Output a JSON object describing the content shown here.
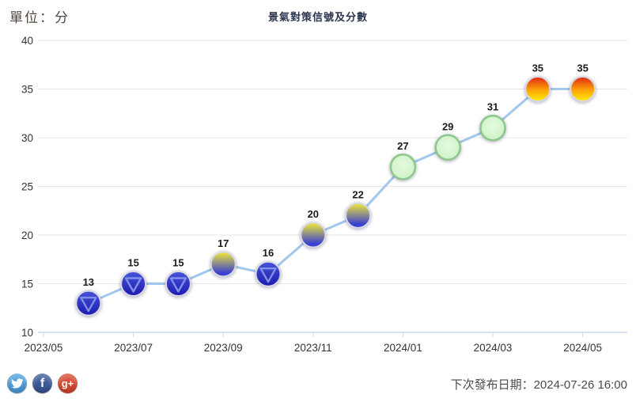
{
  "header": {
    "unit_label": "單位：分",
    "title": "景氣對策信號及分數"
  },
  "chart_data": {
    "type": "line",
    "title": "景氣對策信號及分數",
    "ylabel": "單位：分",
    "ylim": [
      10,
      40
    ],
    "ytick_interval": 5,
    "yticks": [
      10,
      15,
      20,
      25,
      30,
      35,
      40
    ],
    "x_tick_labels": [
      "2023/05",
      "2023/07",
      "2023/09",
      "2023/11",
      "2024/01",
      "2024/03",
      "2024/05"
    ],
    "grid_on": true,
    "legend": "none",
    "line_color": "#a2c7ec",
    "grid_color": "#e6e6e6",
    "axis_color": "#ccd6eb",
    "label_color": "#333333",
    "data_label_color": "#1a1a1a",
    "signal_colors": {
      "blue": {
        "top": "#4753da",
        "bottom": "#1b1bae",
        "triangle_stroke": "#7f90e6",
        "ring": "#d9d9e6"
      },
      "yellow_blue": {
        "top": "#e8e13e",
        "bottom": "#3a41d0",
        "ring": "#d9d9e6"
      },
      "green": {
        "center": "#e4fbde",
        "edge": "#cdf0c6",
        "ring": "#8cc88c"
      },
      "yellow_red": {
        "top": "#e33113",
        "mid": "#fb9b07",
        "bottom": "#ffe70a",
        "ring": "#d9d9e6"
      }
    },
    "points": [
      {
        "month": "2023/06",
        "value": 13,
        "signal": "blue"
      },
      {
        "month": "2023/07",
        "value": 15,
        "signal": "blue"
      },
      {
        "month": "2023/08",
        "value": 15,
        "signal": "blue"
      },
      {
        "month": "2023/09",
        "value": 17,
        "signal": "yellow_blue"
      },
      {
        "month": "2023/10",
        "value": 16,
        "signal": "blue"
      },
      {
        "month": "2023/11",
        "value": 20,
        "signal": "yellow_blue"
      },
      {
        "month": "2023/12",
        "value": 22,
        "signal": "yellow_blue"
      },
      {
        "month": "2024/01",
        "value": 27,
        "signal": "green"
      },
      {
        "month": "2024/02",
        "value": 29,
        "signal": "green"
      },
      {
        "month": "2024/03",
        "value": 31,
        "signal": "green"
      },
      {
        "month": "2024/04",
        "value": 35,
        "signal": "yellow_red"
      },
      {
        "month": "2024/05",
        "value": 35,
        "signal": "yellow_red"
      }
    ]
  },
  "footer": {
    "social": [
      {
        "name": "twitter",
        "icon": "twitter-bird-icon",
        "color": "#4d9fdb"
      },
      {
        "name": "facebook",
        "icon": "facebook-f-icon",
        "color": "#3b5998",
        "glyph": "f"
      },
      {
        "name": "googleplus",
        "icon": "google-plus-icon",
        "color": "#d6492f",
        "glyph": "g+"
      }
    ],
    "next_release_label": "下次發布日期：2024-07-26 16:00"
  }
}
